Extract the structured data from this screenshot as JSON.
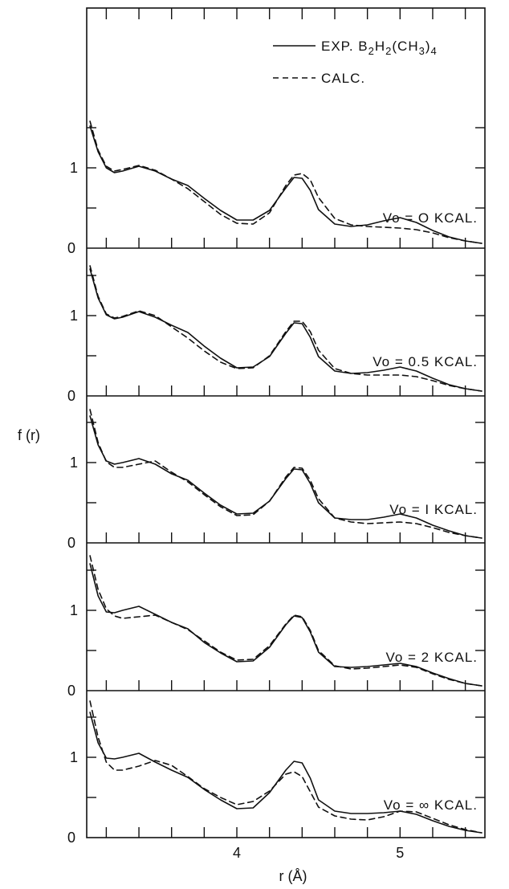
{
  "chart_data": {
    "type": "line",
    "ylabel": "f (r)",
    "xlabel": "r (Å)",
    "xlim": [
      3.08,
      5.52
    ],
    "ylim": [
      0,
      2
    ],
    "xticks_labeled": [
      "4",
      "5"
    ],
    "yticks_labeled": [
      "0",
      "1"
    ],
    "legend": {
      "position": "top-right",
      "entries": [
        {
          "style": "solid",
          "label": "EXP.",
          "formula": {
            "base1": "B",
            "sub1": "2",
            "base2": "H",
            "sub2": "2",
            "base3": "(CH",
            "sub3": "3",
            "base4": ")",
            "sub4": "4"
          }
        },
        {
          "style": "dashed",
          "label": "CALC."
        }
      ]
    },
    "colors": {
      "line": "#111111",
      "background": "#ffffff"
    },
    "panels": [
      {
        "label": "Vo = O KCAL.",
        "series": [
          {
            "name": "EXP.",
            "style": "solid",
            "x": [
              3.1,
              3.15,
              3.2,
              3.25,
              3.3,
              3.4,
              3.5,
              3.6,
              3.7,
              3.8,
              3.9,
              4.0,
              4.1,
              4.2,
              4.3,
              4.35,
              4.4,
              4.45,
              4.5,
              4.6,
              4.7,
              4.8,
              4.9,
              5.0,
              5.1,
              5.2,
              5.3,
              5.4,
              5.5
            ],
            "y": [
              1.52,
              1.2,
              1.0,
              0.94,
              0.96,
              1.02,
              0.96,
              0.86,
              0.78,
              0.62,
              0.47,
              0.35,
              0.35,
              0.47,
              0.75,
              0.88,
              0.87,
              0.72,
              0.48,
              0.3,
              0.27,
              0.29,
              0.34,
              0.38,
              0.32,
              0.22,
              0.14,
              0.09,
              0.06
            ]
          },
          {
            "name": "CALC.",
            "style": "dashed",
            "x": [
              3.1,
              3.15,
              3.2,
              3.25,
              3.3,
              3.4,
              3.5,
              3.6,
              3.7,
              3.8,
              3.9,
              4.0,
              4.1,
              4.2,
              4.3,
              4.35,
              4.4,
              4.45,
              4.5,
              4.6,
              4.7,
              4.8,
              4.9,
              5.0,
              5.1,
              5.2,
              5.3,
              5.4,
              5.5
            ],
            "y": [
              1.58,
              1.22,
              1.02,
              0.96,
              0.98,
              1.03,
              0.97,
              0.86,
              0.74,
              0.58,
              0.42,
              0.31,
              0.3,
              0.44,
              0.78,
              0.91,
              0.93,
              0.85,
              0.63,
              0.37,
              0.29,
              0.27,
              0.26,
              0.25,
              0.23,
              0.19,
              0.13,
              0.09,
              0.06
            ]
          }
        ]
      },
      {
        "label": "Vo = 0.5 KCAL.",
        "series": [
          {
            "name": "EXP.",
            "style": "solid",
            "x": [
              3.1,
              3.15,
              3.2,
              3.25,
              3.3,
              3.4,
              3.5,
              3.6,
              3.7,
              3.8,
              3.9,
              4.0,
              4.1,
              4.2,
              4.3,
              4.35,
              4.4,
              4.45,
              4.5,
              4.6,
              4.7,
              4.8,
              4.9,
              5.0,
              5.1,
              5.2,
              5.3,
              5.4,
              5.5
            ],
            "y": [
              1.58,
              1.22,
              1.01,
              0.96,
              0.98,
              1.05,
              0.98,
              0.88,
              0.79,
              0.62,
              0.47,
              0.35,
              0.36,
              0.49,
              0.78,
              0.91,
              0.9,
              0.73,
              0.49,
              0.31,
              0.28,
              0.29,
              0.32,
              0.36,
              0.31,
              0.22,
              0.14,
              0.09,
              0.06
            ]
          },
          {
            "name": "CALC.",
            "style": "dashed",
            "x": [
              3.1,
              3.15,
              3.2,
              3.25,
              3.3,
              3.4,
              3.5,
              3.6,
              3.7,
              3.8,
              3.9,
              4.0,
              4.1,
              4.2,
              4.3,
              4.35,
              4.4,
              4.45,
              4.5,
              4.6,
              4.7,
              4.8,
              4.9,
              5.0,
              5.1,
              5.2,
              5.3,
              5.4,
              5.5
            ],
            "y": [
              1.62,
              1.24,
              1.02,
              0.97,
              0.99,
              1.06,
              1.0,
              0.86,
              0.72,
              0.56,
              0.42,
              0.34,
              0.35,
              0.5,
              0.8,
              0.93,
              0.93,
              0.8,
              0.57,
              0.34,
              0.28,
              0.26,
              0.26,
              0.26,
              0.24,
              0.19,
              0.13,
              0.09,
              0.06
            ]
          }
        ]
      },
      {
        "label": "Vo = I KCAL.",
        "series": [
          {
            "name": "EXP.",
            "style": "solid",
            "x": [
              3.1,
              3.15,
              3.2,
              3.25,
              3.3,
              3.4,
              3.5,
              3.6,
              3.7,
              3.8,
              3.9,
              4.0,
              4.1,
              4.2,
              4.3,
              4.35,
              4.4,
              4.45,
              4.5,
              4.6,
              4.7,
              4.8,
              4.9,
              5.0,
              5.1,
              5.2,
              5.3,
              5.4,
              5.5
            ],
            "y": [
              1.58,
              1.22,
              1.02,
              0.98,
              1.0,
              1.05,
              0.98,
              0.86,
              0.78,
              0.62,
              0.47,
              0.36,
              0.37,
              0.52,
              0.8,
              0.92,
              0.91,
              0.74,
              0.5,
              0.31,
              0.29,
              0.29,
              0.32,
              0.36,
              0.31,
              0.22,
              0.15,
              0.09,
              0.06
            ]
          },
          {
            "name": "CALC.",
            "style": "dashed",
            "x": [
              3.1,
              3.15,
              3.2,
              3.25,
              3.3,
              3.4,
              3.5,
              3.6,
              3.7,
              3.8,
              3.9,
              4.0,
              4.1,
              4.2,
              4.3,
              4.35,
              4.4,
              4.45,
              4.5,
              4.6,
              4.7,
              4.8,
              4.9,
              5.0,
              5.1,
              5.2,
              5.3,
              5.4,
              5.5
            ],
            "y": [
              1.66,
              1.25,
              1.01,
              0.94,
              0.94,
              0.98,
              1.02,
              0.88,
              0.76,
              0.6,
              0.45,
              0.34,
              0.35,
              0.52,
              0.82,
              0.94,
              0.93,
              0.78,
              0.55,
              0.31,
              0.26,
              0.24,
              0.25,
              0.26,
              0.24,
              0.19,
              0.13,
              0.09,
              0.06
            ]
          }
        ]
      },
      {
        "label": "Vo = 2 KCAL.",
        "series": [
          {
            "name": "EXP.",
            "style": "solid",
            "x": [
              3.1,
              3.15,
              3.2,
              3.25,
              3.3,
              3.4,
              3.5,
              3.6,
              3.7,
              3.8,
              3.9,
              4.0,
              4.1,
              4.2,
              4.3,
              4.35,
              4.4,
              4.45,
              4.5,
              4.6,
              4.7,
              4.8,
              4.9,
              5.0,
              5.1,
              5.2,
              5.3,
              5.4,
              5.5
            ],
            "y": [
              1.58,
              1.18,
              0.98,
              0.97,
              1.0,
              1.05,
              0.95,
              0.85,
              0.77,
              0.6,
              0.47,
              0.36,
              0.37,
              0.54,
              0.82,
              0.93,
              0.91,
              0.73,
              0.48,
              0.3,
              0.29,
              0.3,
              0.32,
              0.34,
              0.3,
              0.22,
              0.15,
              0.09,
              0.06
            ]
          },
          {
            "name": "CALC.",
            "style": "dashed",
            "x": [
              3.1,
              3.15,
              3.2,
              3.25,
              3.3,
              3.4,
              3.5,
              3.6,
              3.7,
              3.8,
              3.9,
              4.0,
              4.1,
              4.2,
              4.3,
              4.35,
              4.4,
              4.45,
              4.5,
              4.6,
              4.7,
              4.8,
              4.9,
              5.0,
              5.1,
              5.2,
              5.3,
              5.4,
              5.5
            ],
            "y": [
              1.68,
              1.26,
              1.02,
              0.93,
              0.9,
              0.92,
              0.94,
              0.85,
              0.76,
              0.62,
              0.48,
              0.38,
              0.39,
              0.56,
              0.83,
              0.94,
              0.92,
              0.75,
              0.5,
              0.31,
              0.27,
              0.28,
              0.3,
              0.32,
              0.29,
              0.21,
              0.14,
              0.09,
              0.06
            ]
          }
        ]
      },
      {
        "label": "Vo = ∞ KCAL.",
        "series": [
          {
            "name": "EXP.",
            "style": "solid",
            "x": [
              3.1,
              3.15,
              3.2,
              3.25,
              3.3,
              3.4,
              3.5,
              3.6,
              3.7,
              3.8,
              3.9,
              4.0,
              4.1,
              4.2,
              4.3,
              4.35,
              4.4,
              4.45,
              4.5,
              4.6,
              4.7,
              4.8,
              4.9,
              5.0,
              5.1,
              5.2,
              5.3,
              5.4,
              5.5
            ],
            "y": [
              1.56,
              1.18,
              0.99,
              0.98,
              1.0,
              1.05,
              0.94,
              0.84,
              0.75,
              0.6,
              0.47,
              0.36,
              0.37,
              0.56,
              0.84,
              0.95,
              0.93,
              0.74,
              0.47,
              0.33,
              0.3,
              0.3,
              0.31,
              0.33,
              0.29,
              0.21,
              0.14,
              0.09,
              0.06
            ]
          },
          {
            "name": "CALC.",
            "style": "dashed",
            "x": [
              3.1,
              3.15,
              3.2,
              3.25,
              3.3,
              3.4,
              3.5,
              3.6,
              3.7,
              3.8,
              3.9,
              4.0,
              4.1,
              4.2,
              4.3,
              4.35,
              4.4,
              4.45,
              4.5,
              4.6,
              4.7,
              4.8,
              4.9,
              5.0,
              5.1,
              5.2,
              5.3,
              5.4,
              5.5
            ],
            "y": [
              1.7,
              1.25,
              0.94,
              0.84,
              0.84,
              0.89,
              0.96,
              0.9,
              0.76,
              0.61,
              0.5,
              0.41,
              0.45,
              0.58,
              0.79,
              0.82,
              0.76,
              0.57,
              0.38,
              0.27,
              0.23,
              0.22,
              0.26,
              0.33,
              0.32,
              0.24,
              0.16,
              0.1,
              0.06
            ]
          }
        ]
      }
    ]
  }
}
